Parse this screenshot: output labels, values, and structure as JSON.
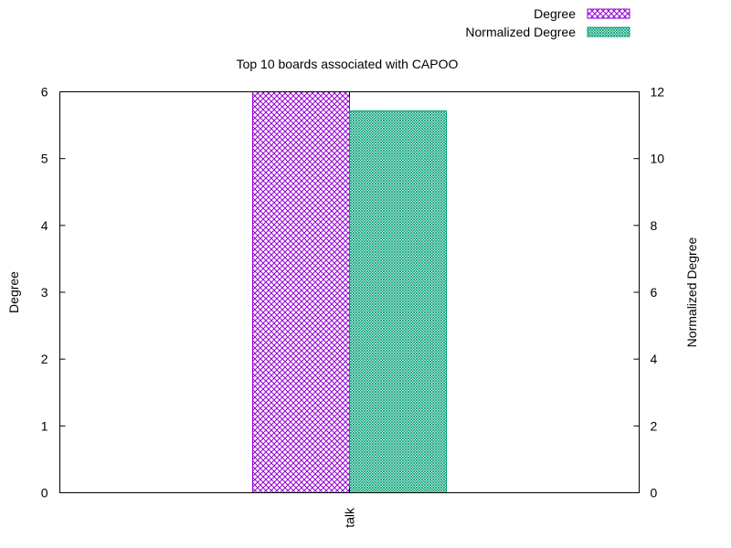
{
  "chart_data": {
    "type": "bar",
    "title": "Top 10 boards associated with CAPOO",
    "categories": [
      "talk"
    ],
    "series": [
      {
        "name": "Degree",
        "axis": "left",
        "values": [
          6
        ],
        "color": "#9400d3",
        "pattern": "crosshatch"
      },
      {
        "name": "Normalized Degree",
        "axis": "right",
        "values": [
          11.43
        ],
        "color": "#009e73",
        "pattern": "fine-mesh"
      }
    ],
    "ylabel": "Degree",
    "y2label": "Normalized Degree",
    "ylim": [
      0,
      6
    ],
    "y2lim": [
      0,
      12
    ],
    "yticks": [
      "0",
      "1",
      "2",
      "3",
      "4",
      "5",
      "6"
    ],
    "y2ticks": [
      "0",
      "2",
      "4",
      "6",
      "8",
      "10",
      "12"
    ],
    "grid": false,
    "legend_position": "top-right"
  }
}
